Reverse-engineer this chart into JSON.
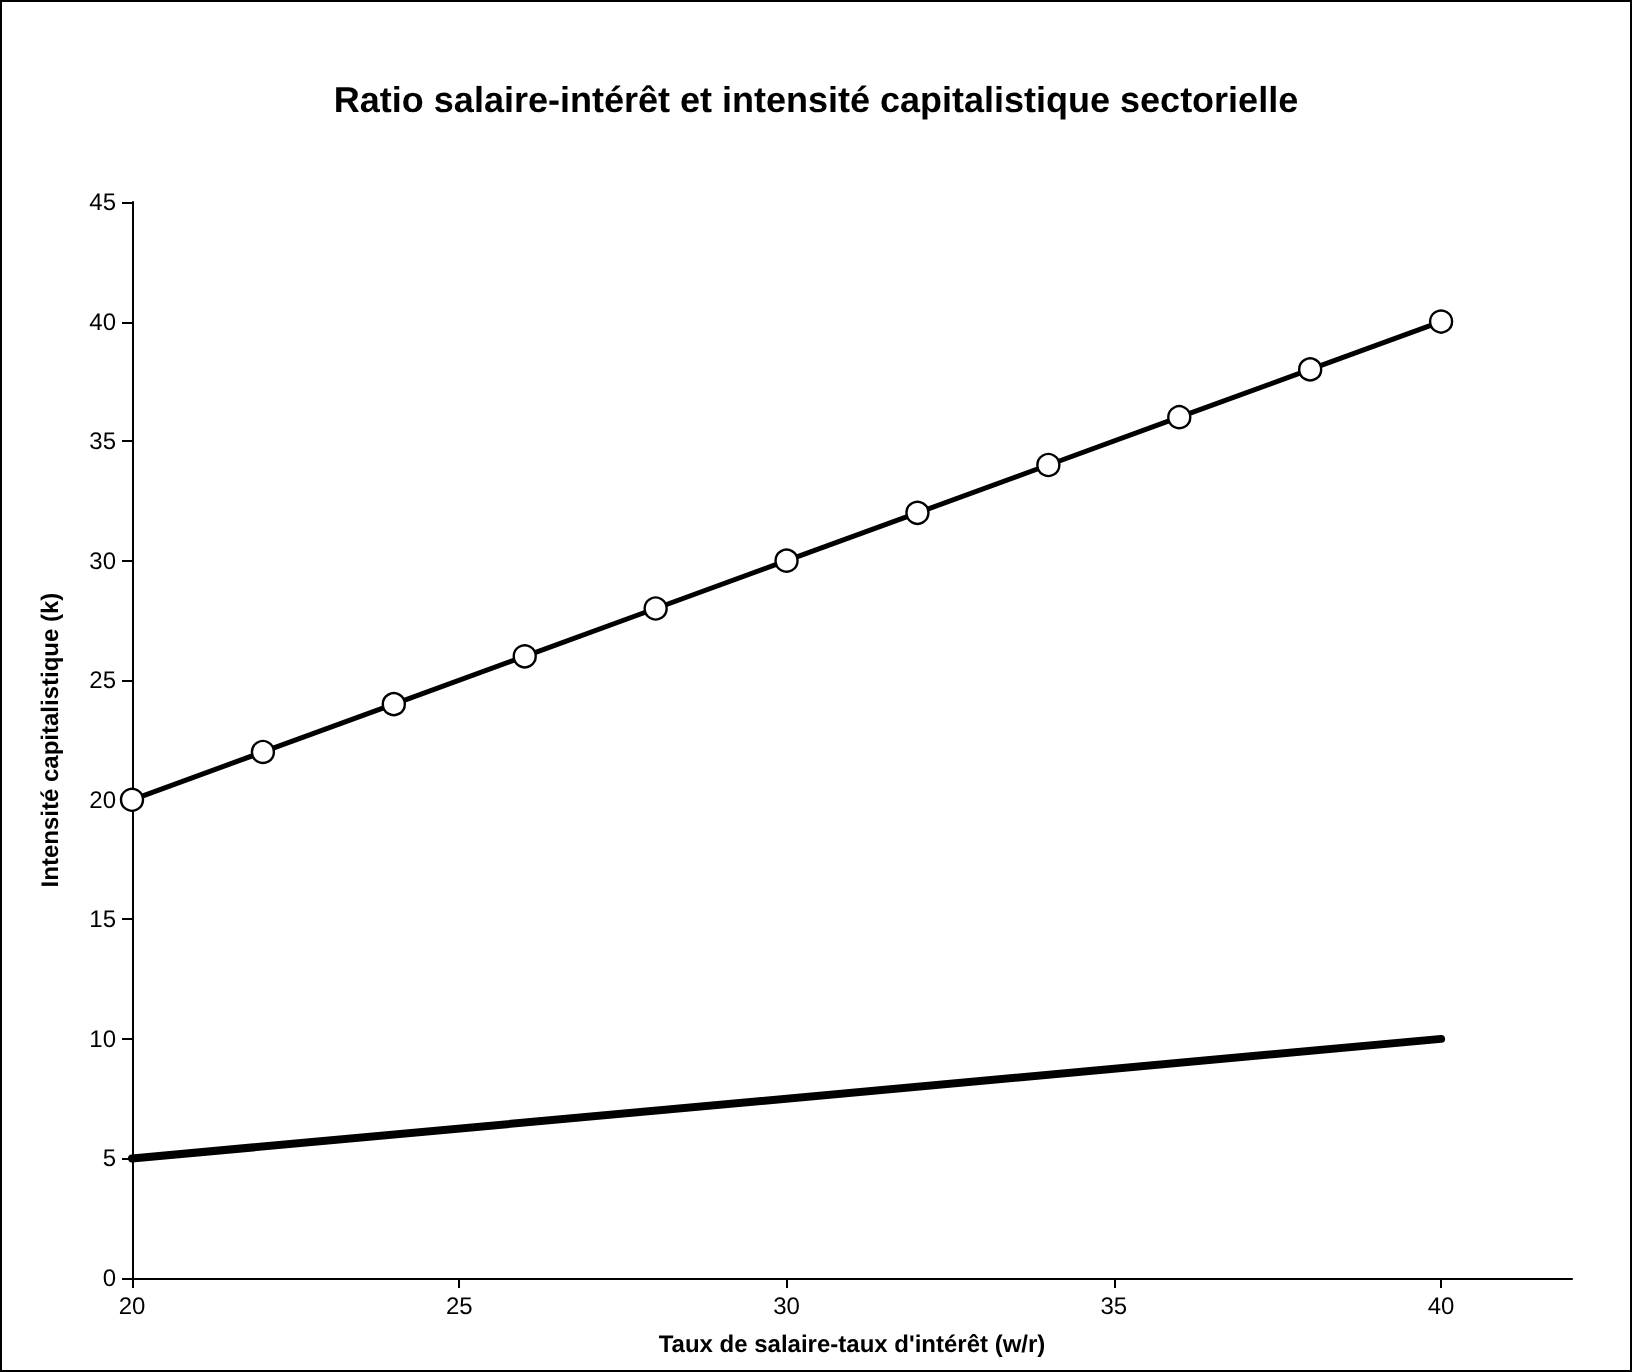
{
  "chart_data": {
    "type": "line",
    "title": "Ratio salaire-intérêt et intensité capitalistique sectorielle",
    "xlabel": "Taux de salaire-taux d'intérêt (w/r)",
    "ylabel": "Intensité capitalistique (k)",
    "xlim": [
      20,
      42
    ],
    "xticks": [
      20,
      25,
      30,
      35,
      40
    ],
    "ylim": [
      0,
      45
    ],
    "yticks": [
      0,
      5,
      10,
      15,
      20,
      25,
      30,
      35,
      40,
      45
    ],
    "series": [
      {
        "color": "#000000",
        "marker": "circle",
        "x": [
          20,
          22,
          24,
          26,
          28,
          30,
          32,
          34,
          36,
          38,
          40
        ],
        "values": [
          20,
          22,
          24,
          26,
          28,
          30,
          32,
          34,
          36,
          38,
          40
        ]
      },
      {
        "color": "#000000",
        "marker": "none",
        "x": [
          20,
          40
        ],
        "values": [
          5,
          10
        ]
      }
    ]
  }
}
